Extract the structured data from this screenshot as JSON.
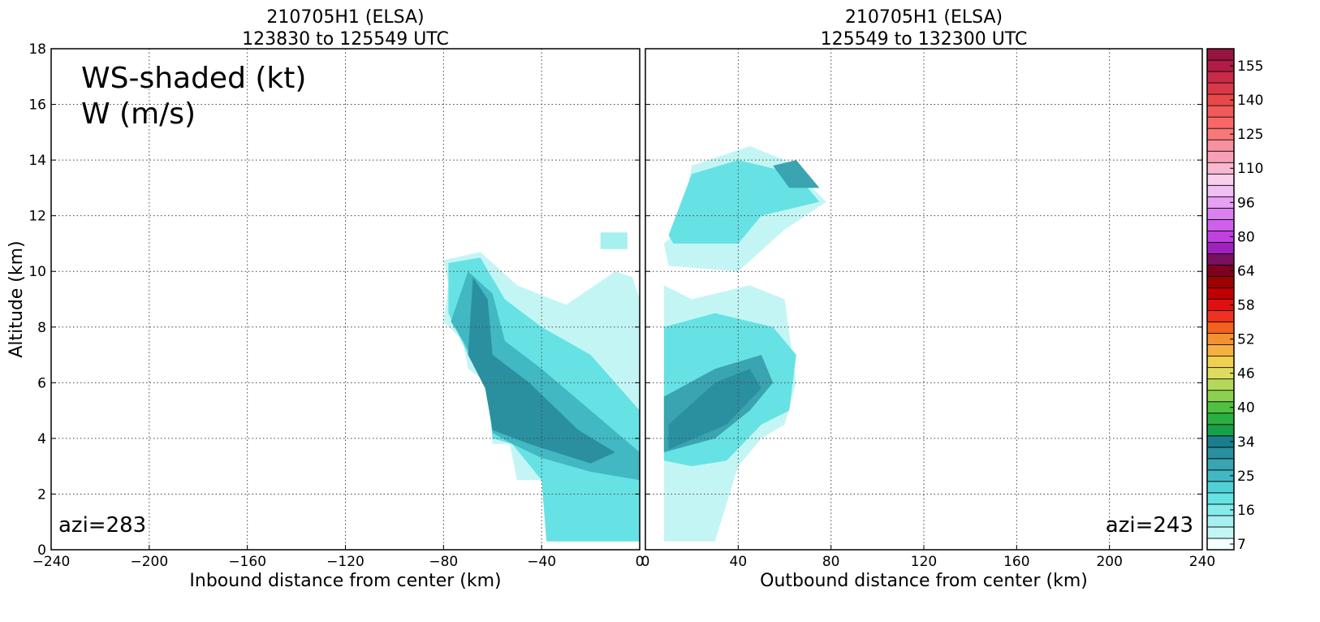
{
  "chart_data": [
    {
      "type": "contourf",
      "title": [
        "210705H1 (ELSA)",
        "123830 to 125549 UTC"
      ],
      "x_label": "Inbound distance from center (km)",
      "y_label": "Altitude (km)",
      "legend_text": [
        "WS-shaded (kt)",
        "W (m/s)"
      ],
      "azimuth_label": "azi=283",
      "xlim": [
        -240,
        0
      ],
      "ylim": [
        0,
        18
      ],
      "xticks": [
        {
          "value": -240,
          "label": "−240"
        },
        {
          "value": -200,
          "label": "−200"
        },
        {
          "value": -160,
          "label": "−160"
        },
        {
          "value": -120,
          "label": "−120"
        },
        {
          "value": -80,
          "label": "−80"
        },
        {
          "value": -40,
          "label": "−40"
        },
        0
      ],
      "yticks": [
        0,
        2,
        4,
        6,
        8,
        10,
        12,
        14,
        16,
        18
      ],
      "show_ytick_labels": true,
      "grid": true,
      "regions": [
        {
          "value": 10,
          "x": [
            -80,
            -65,
            -50,
            -30,
            -10,
            -3,
            0,
            0,
            -38,
            -40,
            -50,
            -53,
            -60,
            -62,
            -70,
            -72,
            -80,
            -78
          ],
          "y": [
            10.4,
            10.7,
            9.5,
            8.8,
            10,
            9.8,
            9,
            0.3,
            0.3,
            2.5,
            2.5,
            3.8,
            3.8,
            6,
            6.5,
            7.5,
            8.2,
            9.5
          ]
        },
        {
          "value": 19,
          "x": [
            -78,
            -65,
            -55,
            -40,
            -20,
            -5,
            0,
            0,
            -38,
            -40,
            -52,
            -60,
            -62,
            -70,
            -78
          ],
          "y": [
            10.3,
            10.5,
            9,
            8,
            7,
            5.5,
            5,
            0.3,
            0.3,
            2.5,
            3.8,
            4,
            6,
            7,
            8.5
          ]
        },
        {
          "value": 25,
          "x": [
            -70,
            -60,
            -55,
            -40,
            -20,
            0,
            0,
            -20,
            -40,
            -52,
            -60,
            -63,
            -72,
            -77
          ],
          "y": [
            10,
            9.2,
            7.5,
            6.5,
            5,
            3.5,
            2.5,
            2.8,
            3.3,
            3.8,
            4.2,
            6,
            7.5,
            8.2
          ]
        },
        {
          "value": 31,
          "x": [
            -68,
            -62,
            -60,
            -45,
            -25,
            -10,
            -20,
            -45,
            -60,
            -63,
            -70
          ],
          "y": [
            9.8,
            9,
            7,
            6,
            4.3,
            3.5,
            3.1,
            3.8,
            4.3,
            5.8,
            7
          ]
        },
        {
          "value": 13,
          "x": [
            -16,
            -5,
            -5,
            -16
          ],
          "y": [
            11.4,
            11.4,
            10.8,
            10.8
          ]
        }
      ]
    },
    {
      "type": "contourf",
      "title": [
        "210705H1 (ELSA)",
        "125549 to 132300 UTC"
      ],
      "x_label": "Outbound distance from center (km)",
      "azimuth_label": "azi=243",
      "xlim": [
        0,
        240
      ],
      "ylim": [
        0,
        18
      ],
      "xticks": [
        0,
        40,
        80,
        120,
        160,
        200,
        240
      ],
      "yticks": [
        0,
        2,
        4,
        6,
        8,
        10,
        12,
        14,
        16,
        18
      ],
      "show_ytick_labels": false,
      "grid": true,
      "regions": [
        {
          "value": 10,
          "x": [
            8,
            15,
            20,
            45,
            60,
            78,
            60,
            40,
            10
          ],
          "y": [
            11,
            11.5,
            13.8,
            14.5,
            14,
            12.5,
            11.5,
            10,
            10.2
          ]
        },
        {
          "value": 10,
          "x": [
            8,
            20,
            45,
            60,
            65,
            60,
            50,
            40,
            30,
            8
          ],
          "y": [
            9.5,
            9,
            9.5,
            9,
            6,
            4.5,
            4,
            3,
            0.3,
            0.3
          ]
        },
        {
          "value": 19,
          "x": [
            10,
            20,
            40,
            65,
            75,
            50,
            40,
            12
          ],
          "y": [
            11.3,
            13.5,
            14,
            13.5,
            12.5,
            12,
            11,
            11
          ]
        },
        {
          "value": 19,
          "x": [
            8,
            30,
            55,
            65,
            62,
            50,
            35,
            20,
            8
          ],
          "y": [
            8,
            8.5,
            8,
            7,
            5,
            4.5,
            3.2,
            3,
            3.2
          ]
        },
        {
          "value": 28,
          "x": [
            8,
            30,
            50,
            55,
            45,
            30,
            8
          ],
          "y": [
            5.5,
            6.5,
            7,
            6,
            5,
            4,
            3.5
          ]
        },
        {
          "value": 28,
          "x": [
            55,
            65,
            75,
            62
          ],
          "y": [
            13.8,
            14,
            13,
            13
          ]
        },
        {
          "value": 31,
          "x": [
            10,
            30,
            45,
            50,
            35,
            10
          ],
          "y": [
            4.5,
            6,
            6.5,
            5.8,
            4.5,
            3.6
          ]
        }
      ]
    }
  ],
  "colorbar": {
    "levels": [
      7,
      10,
      13,
      16,
      19,
      22,
      25,
      28,
      31,
      34,
      36,
      38,
      40,
      42,
      44,
      46,
      48,
      50,
      52,
      54,
      56,
      58,
      60,
      62,
      64,
      69,
      75,
      80,
      85,
      91,
      96,
      101,
      105,
      110,
      115,
      120,
      125,
      130,
      135,
      140,
      145,
      150,
      155,
      160
    ],
    "colors": [
      "#f2ffff",
      "#c4f5f5",
      "#a6f0f0",
      "#86ebeb",
      "#66e2e4",
      "#52d0d6",
      "#42b8c2",
      "#3aa4b0",
      "#2a90a0",
      "#1a7e8e",
      "#16a04a",
      "#2ab040",
      "#50c040",
      "#8cd050",
      "#b4d85a",
      "#dcdc60",
      "#f0d050",
      "#f4b040",
      "#f49030",
      "#f46020",
      "#f03020",
      "#e01010",
      "#c00000",
      "#a00000",
      "#800020",
      "#7a1060",
      "#a020c0",
      "#c040e0",
      "#d060ec",
      "#dc80f0",
      "#e8a0f4",
      "#f0c0f4",
      "#f8d0ec",
      "#f8b8d0",
      "#f8a0b8",
      "#f890a0",
      "#f87878",
      "#f86868",
      "#f05a5a",
      "#e84848",
      "#d83848",
      "#c82a48",
      "#b01c44",
      "#981440"
    ],
    "ticks": [
      7,
      16,
      25,
      34,
      40,
      46,
      52,
      58,
      64,
      80,
      96,
      110,
      125,
      140,
      155
    ]
  }
}
